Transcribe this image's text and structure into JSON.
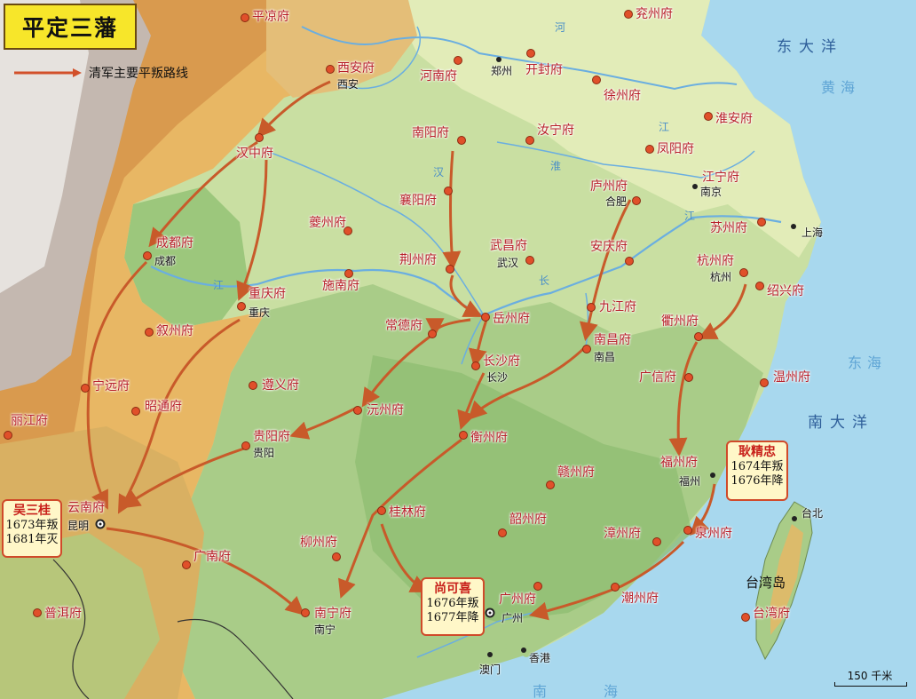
{
  "title": "平定三藩",
  "legend": {
    "label": "清军主要平叛路线",
    "color": "#d2502a"
  },
  "colors": {
    "route": "#c85a2a",
    "city_dot": "#e0502a",
    "label": "#b8202a",
    "sea": "#9fd4ec"
  },
  "seas": {
    "east_ocean": "东大洋",
    "yellow_sea": "黄海",
    "east_sea": "东海",
    "south_ocean": "南大洋",
    "south_sea_1": "南",
    "south_sea_2": "海"
  },
  "rivers": {
    "he": "河",
    "huai": "淮",
    "han": "汉",
    "jiang1": "江",
    "jiang2": "江",
    "chang": "长",
    "jiang3": "江"
  },
  "islands": {
    "taiwan": "台湾岛"
  },
  "prefectures": {
    "pingliang": "平凉府",
    "yanzhou": "兖州府",
    "xian": "西安府",
    "henan": "河南府",
    "kaifeng": "开封府",
    "xuzhou": "徐州府",
    "huaian": "淮安府",
    "hanzhong": "汉中府",
    "nanyang": "南阳府",
    "runing": "汝宁府",
    "fengyang": "凤阳府",
    "luzhou": "庐州府",
    "jiangning": "江宁府",
    "xiangyang": "襄阳府",
    "kuizhou": "夔州府",
    "chengdu": "成都府",
    "suzhou": "苏州府",
    "wuchang": "武昌府",
    "jingzhou": "荆州府",
    "anqing": "安庆府",
    "hangzhou": "杭州府",
    "shinan": "施南府",
    "chongqing": "重庆府",
    "shaoxing": "绍兴府",
    "changde": "常德府",
    "yuezhou": "岳州府",
    "jiujiang": "九江府",
    "quzhou": "衢州府",
    "xuzhou2": "叙州府",
    "nanchang": "南昌府",
    "changsha": "长沙府",
    "guangxin": "广信府",
    "wenzhou": "温州府",
    "ningyuan": "宁远府",
    "zunyi": "遵义府",
    "zhaotong": "昭通府",
    "yuanzhou": "沅州府",
    "lijiang": "丽江府",
    "guiyang": "贵阳府",
    "hengzhou": "衡州府",
    "fuzhou": "福州府",
    "ganzhou": "赣州府",
    "yunnan": "云南府",
    "guilin": "桂林府",
    "shaozhou": "韶州府",
    "quanzhou": "泉州府",
    "zhangzhou": "漳州府",
    "liuzhou": "柳州府",
    "guangnan": "广南府",
    "guangzhou": "广州府",
    "chaozhou": "潮州府",
    "nanning": "南宁府",
    "puer": "普洱府",
    "taiwan": "台湾府"
  },
  "cities": {
    "xian": "西安",
    "zhengzhou": "郑州",
    "nanjing": "南京",
    "hefei": "合肥",
    "chengdu": "成都",
    "wuhan": "武汉",
    "shanghai": "上海",
    "hangzhou": "杭州",
    "chongqing": "重庆",
    "nanchang": "南昌",
    "changsha": "长沙",
    "guiyang": "贵阳",
    "fuzhou": "福州",
    "kunming": "昆明",
    "taipei": "台北",
    "guangzhou": "广州",
    "nanning": "南宁",
    "macau": "澳门",
    "hongkong": "香港"
  },
  "rebels": [
    {
      "name": "吴三桂",
      "start": "1673年叛",
      "end": "1681年灭"
    },
    {
      "name": "尚可喜",
      "start": "1676年叛",
      "end": "1677年降"
    },
    {
      "name": "耿精忠",
      "start": "1674年叛",
      "end": "1676年降"
    }
  ],
  "scale": "150 千米"
}
